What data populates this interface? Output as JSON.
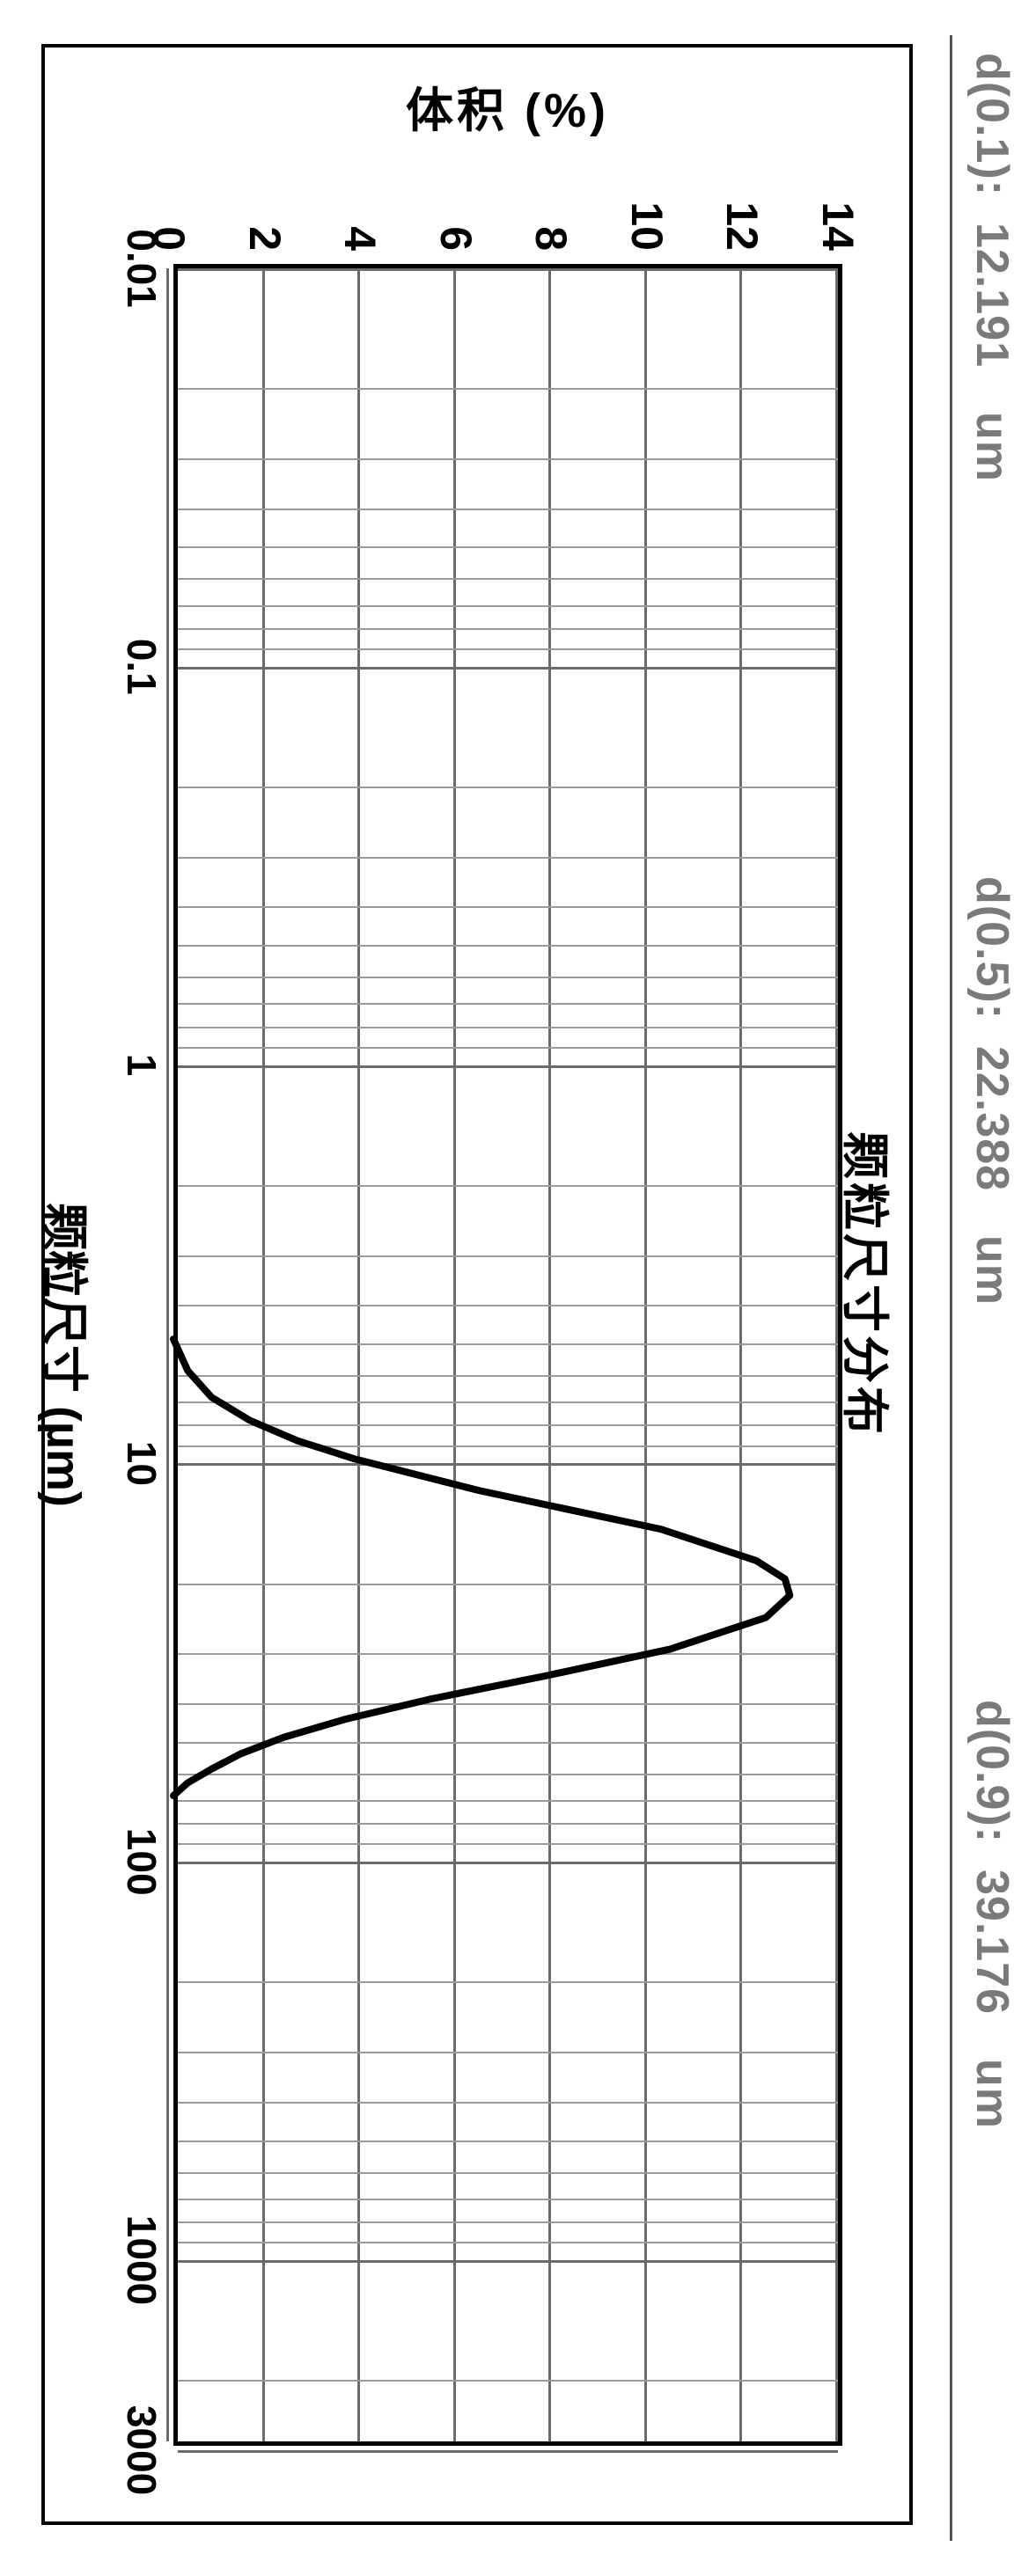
{
  "stats": {
    "d01": {
      "label": "d(0.1):",
      "value": "12.191",
      "unit": "um"
    },
    "d05": {
      "label": "d(0.5):",
      "value": "22.388",
      "unit": "um"
    },
    "d09": {
      "label": "d(0.9):",
      "value": "39.176",
      "unit": "um"
    }
  },
  "chart": {
    "type": "line",
    "title": "颗粒尺寸分布",
    "xlabel": "颗粒尺寸 (µm)",
    "ylabel": "体积 (%)",
    "x_scale": "log",
    "xlim": [
      0.01,
      3000
    ],
    "xticks": [
      0.01,
      0.1,
      1,
      10,
      100,
      1000,
      3000
    ],
    "xtick_labels": [
      "0.01",
      "0.1",
      "1",
      "10",
      "100",
      "1000",
      "3000"
    ],
    "ylim": [
      0,
      14
    ],
    "yticks": [
      0,
      2,
      4,
      6,
      8,
      10,
      12,
      14
    ],
    "series": {
      "x": [
        5,
        6,
        7,
        8,
        9,
        10,
        12,
        15,
        18,
        20,
        22,
        25,
        30,
        35,
        40,
        45,
        50,
        55,
        60,
        65,
        70
      ],
      "y": [
        0,
        0.3,
        0.8,
        1.6,
        2.6,
        3.8,
        6.4,
        10.2,
        12.2,
        12.8,
        12.9,
        12.4,
        10.4,
        7.8,
        5.4,
        3.6,
        2.3,
        1.4,
        0.8,
        0.3,
        0
      ]
    },
    "line_color": "#000000",
    "line_width": 8,
    "background_color": "#ffffff",
    "grid_major_color": "#6b6b6b",
    "grid_minor_color": "#9a9a9a",
    "border_color": "#000000",
    "tick_fontsize": 48,
    "label_fontsize": 54,
    "title_fontsize": 54,
    "stats_font_color": "#7a7a7a"
  }
}
